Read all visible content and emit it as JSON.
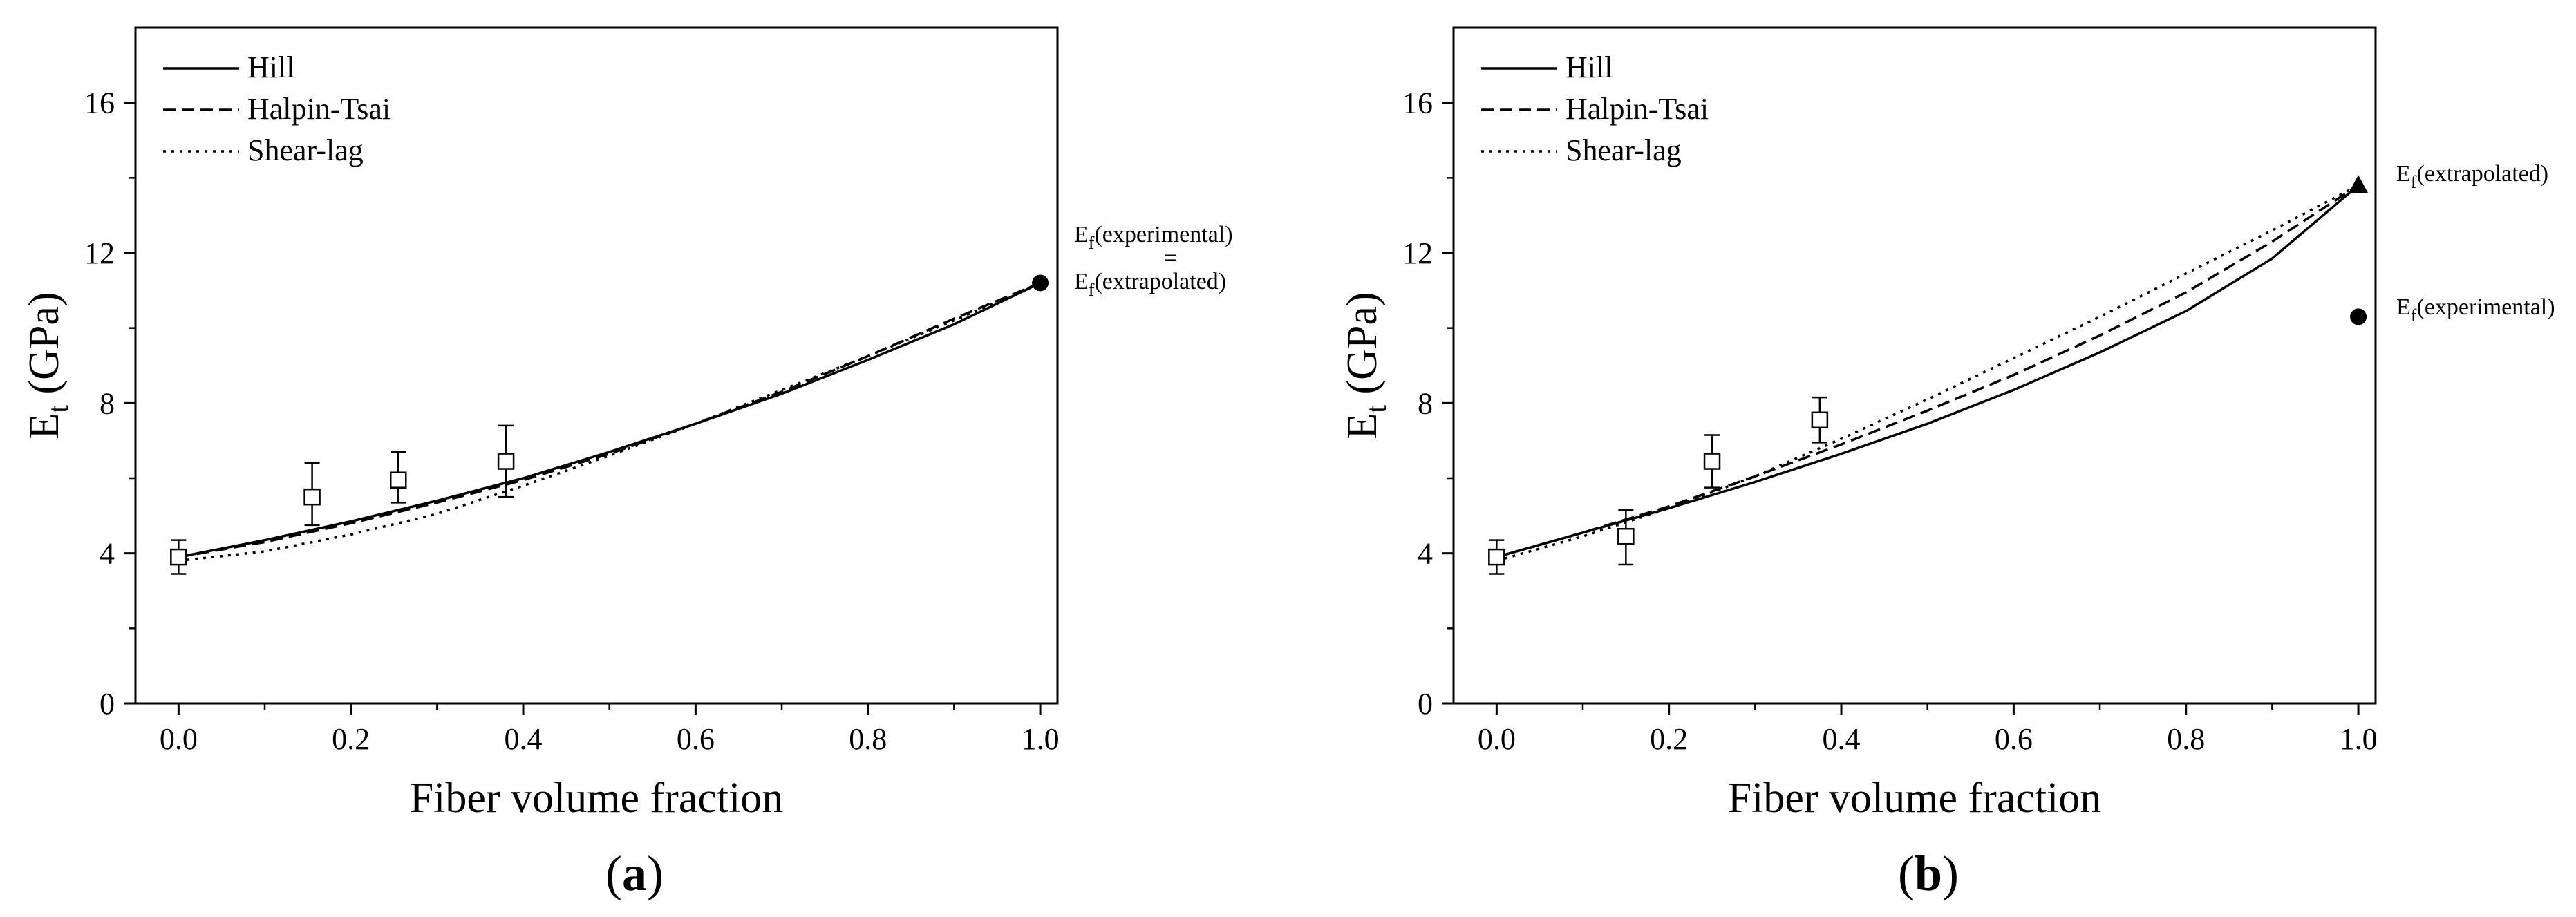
{
  "chart_data": [
    {
      "type": "line",
      "panel_label": "(a)",
      "xlabel": "Fiber volume fraction",
      "ylabel": "E",
      "ylabel_sub": "t",
      "ylabel_unit": " (GPa)",
      "xlim": [
        -0.05,
        1.02
      ],
      "ylim": [
        0,
        18
      ],
      "xticks": [
        0.0,
        0.2,
        0.4,
        0.6,
        0.8,
        1.0
      ],
      "xtick_labels": [
        "0.0",
        "0.2",
        "0.4",
        "0.6",
        "0.8",
        "1.0"
      ],
      "yticks": [
        0,
        4,
        8,
        12,
        16
      ],
      "ytick_labels": [
        "0",
        "4",
        "8",
        "12",
        "16"
      ],
      "legend_position": "top-left",
      "series": [
        {
          "name": "Hill",
          "style": "solid",
          "x": [
            0,
            0.1,
            0.2,
            0.3,
            0.4,
            0.5,
            0.6,
            0.7,
            0.8,
            0.9,
            1.0
          ],
          "y": [
            3.9,
            4.35,
            4.85,
            5.4,
            6.0,
            6.7,
            7.45,
            8.25,
            9.15,
            10.1,
            11.2
          ]
        },
        {
          "name": "Halpin-Tsai",
          "style": "dashed",
          "x": [
            0,
            0.1,
            0.2,
            0.3,
            0.4,
            0.5,
            0.6,
            0.7,
            0.8,
            0.9,
            1.0
          ],
          "y": [
            3.9,
            4.3,
            4.8,
            5.35,
            5.95,
            6.65,
            7.45,
            8.3,
            9.25,
            10.25,
            11.2
          ]
        },
        {
          "name": "Shear-lag",
          "style": "dotted",
          "x": [
            0,
            0.1,
            0.2,
            0.3,
            0.4,
            0.5,
            0.6,
            0.7,
            0.8,
            0.9,
            1.0
          ],
          "y": [
            3.8,
            4.05,
            4.5,
            5.05,
            5.8,
            6.6,
            7.45,
            8.35,
            9.25,
            10.2,
            11.2
          ]
        }
      ],
      "experimental": [
        {
          "x": 0.0,
          "y": 3.9,
          "yerr_low": 0.45,
          "yerr_high": 0.45
        },
        {
          "x": 0.155,
          "y": 5.5,
          "yerr_low": 0.75,
          "yerr_high": 0.9
        },
        {
          "x": 0.255,
          "y": 5.95,
          "yerr_low": 0.6,
          "yerr_high": 0.75
        },
        {
          "x": 0.38,
          "y": 6.45,
          "yerr_low": 0.95,
          "yerr_high": 0.95
        }
      ],
      "markers": [
        {
          "kind": "circle",
          "x": 1.0,
          "y": 11.2
        }
      ],
      "annotations": [
        {
          "lines": [
            {
              "parts": [
                [
                  "E",
                  ""
                ],
                [
                  "f",
                  "sub"
                ],
                [
                  "(experimental)",
                  ""
                ]
              ]
            },
            {
              "parts": [
                [
                  "=",
                  ""
                ]
              ]
            },
            {
              "parts": [
                [
                  "E",
                  ""
                ],
                [
                  "f",
                  "sub"
                ],
                [
                  "(extrapolated)",
                  ""
                ]
              ]
            }
          ]
        }
      ]
    },
    {
      "type": "line",
      "panel_label": "(b)",
      "xlabel": "Fiber volume fraction",
      "ylabel": "E",
      "ylabel_sub": "t",
      "ylabel_unit": " (GPa)",
      "xlim": [
        -0.05,
        1.02
      ],
      "ylim": [
        0,
        18
      ],
      "xticks": [
        0.0,
        0.2,
        0.4,
        0.6,
        0.8,
        1.0
      ],
      "xtick_labels": [
        "0.0",
        "0.2",
        "0.4",
        "0.6",
        "0.8",
        "1.0"
      ],
      "yticks": [
        0,
        4,
        8,
        12,
        16
      ],
      "ytick_labels": [
        "0",
        "4",
        "8",
        "12",
        "16"
      ],
      "legend_position": "top-left",
      "series": [
        {
          "name": "Hill",
          "style": "solid",
          "x": [
            0,
            0.1,
            0.2,
            0.3,
            0.4,
            0.5,
            0.6,
            0.7,
            0.8,
            0.9,
            1.0
          ],
          "y": [
            3.9,
            4.55,
            5.2,
            5.9,
            6.65,
            7.45,
            8.35,
            9.35,
            10.45,
            11.85,
            13.8
          ]
        },
        {
          "name": "Halpin-Tsai",
          "style": "dashed",
          "x": [
            0,
            0.1,
            0.2,
            0.3,
            0.4,
            0.5,
            0.6,
            0.7,
            0.8,
            0.9,
            1.0
          ],
          "y": [
            3.9,
            4.55,
            5.25,
            6.05,
            6.9,
            7.8,
            8.75,
            9.8,
            10.95,
            12.3,
            13.8
          ]
        },
        {
          "name": "Shear-lag",
          "style": "dotted",
          "x": [
            0,
            0.1,
            0.2,
            0.3,
            0.4,
            0.5,
            0.6,
            0.7,
            0.8,
            0.9,
            1.0
          ],
          "y": [
            3.8,
            4.45,
            5.2,
            6.05,
            7.05,
            8.1,
            9.2,
            10.3,
            11.45,
            12.6,
            13.8
          ]
        }
      ],
      "experimental": [
        {
          "x": 0.0,
          "y": 3.9,
          "yerr_low": 0.45,
          "yerr_high": 0.45
        },
        {
          "x": 0.15,
          "y": 4.45,
          "yerr_low": 0.75,
          "yerr_high": 0.7
        },
        {
          "x": 0.25,
          "y": 6.45,
          "yerr_low": 0.7,
          "yerr_high": 0.7
        },
        {
          "x": 0.375,
          "y": 7.55,
          "yerr_low": 0.6,
          "yerr_high": 0.6
        }
      ],
      "markers": [
        {
          "kind": "triangle",
          "x": 1.0,
          "y": 13.8
        },
        {
          "kind": "circle",
          "x": 1.0,
          "y": 10.3
        }
      ],
      "annotations": [
        {
          "lines": [
            {
              "parts": [
                [
                  "E",
                  ""
                ],
                [
                  "f",
                  "sub"
                ],
                [
                  "(extrapolated)",
                  ""
                ]
              ]
            }
          ]
        },
        {
          "lines": [
            {
              "parts": [
                [
                  "E",
                  ""
                ],
                [
                  "f",
                  "sub"
                ],
                [
                  "(experimental)",
                  ""
                ]
              ]
            }
          ]
        }
      ]
    }
  ]
}
